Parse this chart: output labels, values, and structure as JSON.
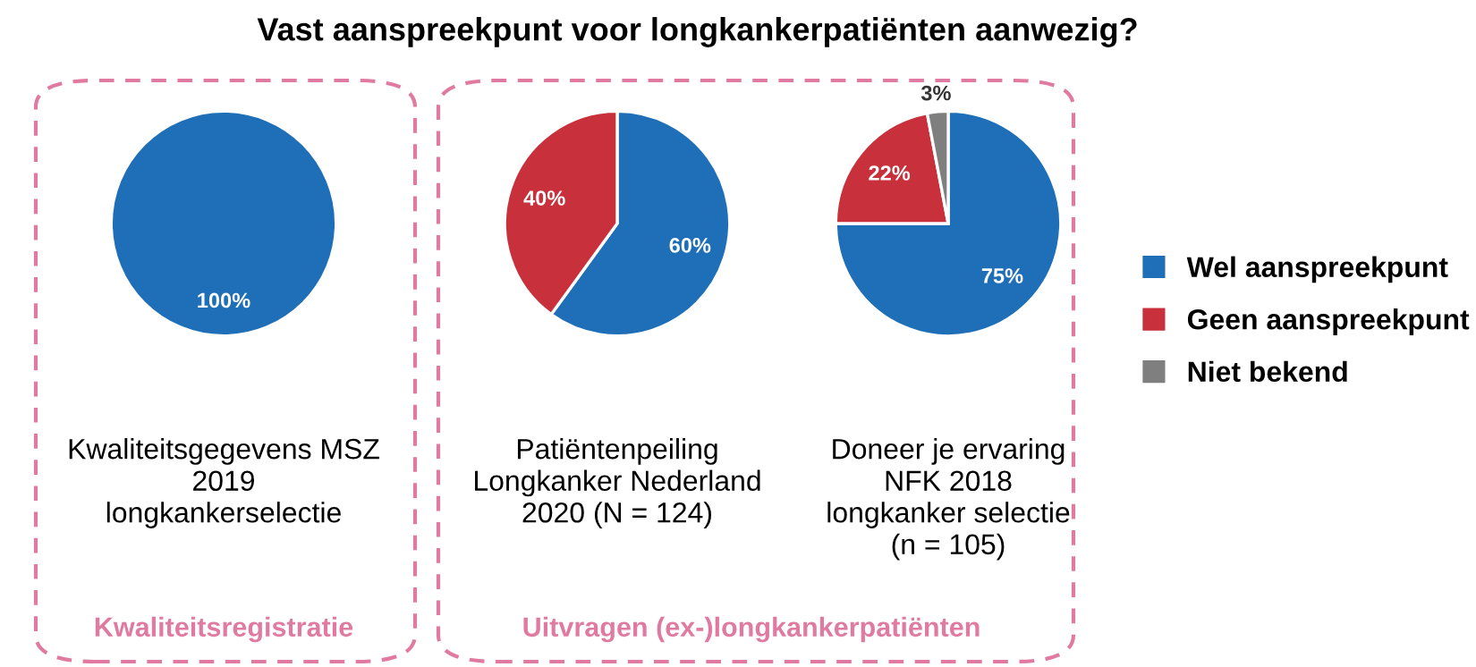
{
  "chart_data": [
    {
      "type": "pie",
      "title": "Vast aanspreekpunt voor longkankerpatiënten aanwezig?",
      "subtitle": "Kwaliteitsgegevens MSZ\n2019\nlongkankerselectie",
      "annotations": [
        "Kwaliteitsregistratie"
      ],
      "categories": [
        null
      ],
      "values": [
        100
      ],
      "colors": [
        "#1f6fb8"
      ],
      "value_labels": [
        "100%"
      ]
    },
    {
      "type": "pie",
      "subtitle": "Patiëntenpeiling\nLongkanker Nederland\n2020 (N = 124)",
      "annotations": [
        "Uitvragen (ex-)longkankerpatiënten"
      ],
      "categories": [
        null,
        null
      ],
      "values": [
        60,
        40
      ],
      "colors": [
        "#1f6fb8",
        "#c8303c"
      ],
      "value_labels": [
        "60%",
        "40%"
      ]
    },
    {
      "type": "pie",
      "subtitle": "Doneer je ervaring\nNFK 2018\nlongkanker selectie\n(n = 105)",
      "categories": [
        "Wel aanspreekpunt",
        "Geen aanspreekpunt",
        "Niet bekend"
      ],
      "values": [
        75,
        22,
        3
      ],
      "colors": [
        "#1f6fb8",
        "#c8303c",
        "#7f7f7f"
      ],
      "value_labels": [
        "75%",
        "22%",
        "3%"
      ],
      "legend": "right"
    }
  ]
}
